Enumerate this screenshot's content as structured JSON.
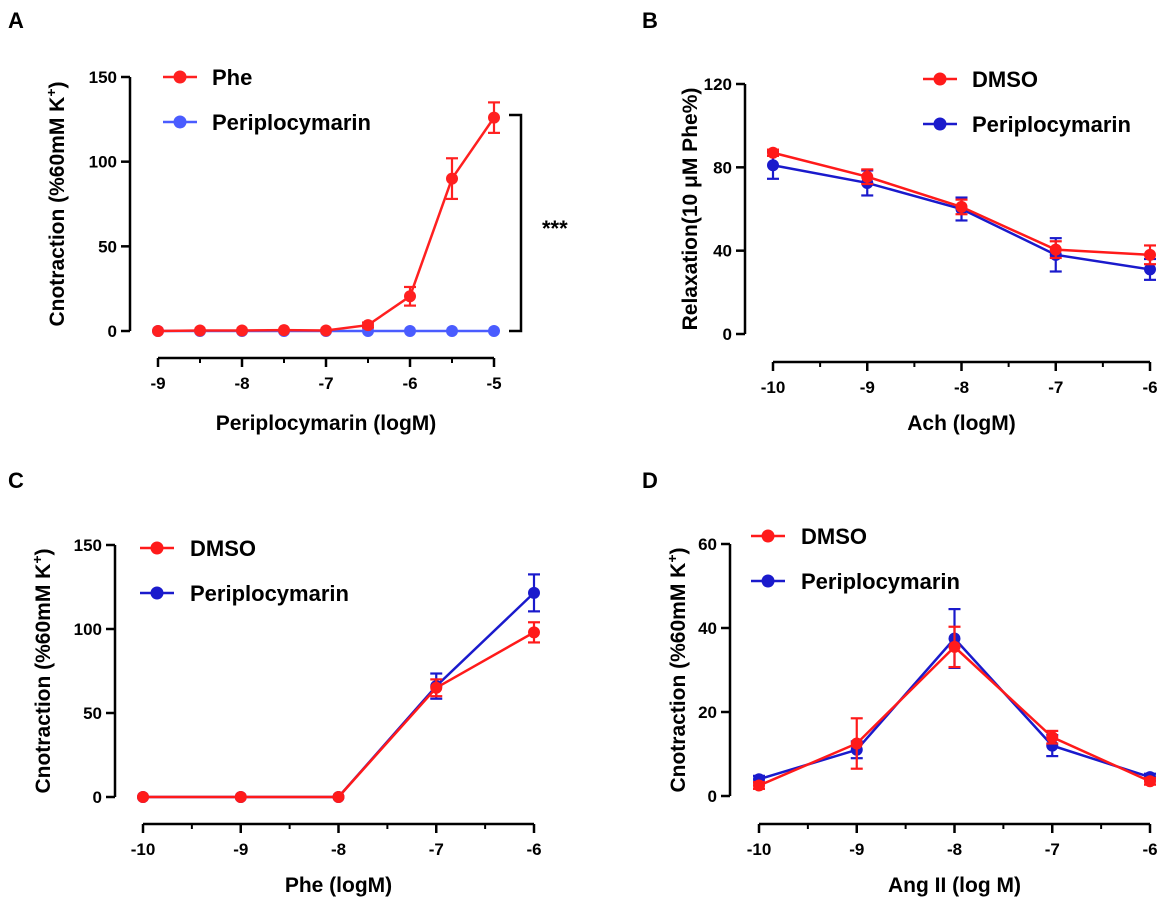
{
  "chart_data": [
    {
      "panel": "A",
      "type": "line",
      "xlabel": "Periplocymarin (logM)",
      "ylabel_main": "Cnotraction (%60mM K",
      "ylabel_sup": "+",
      "ylabel_tail": ")",
      "xlim": [
        -9,
        -5
      ],
      "ylim": [
        0,
        150
      ],
      "xticks": [
        "-9",
        "-8",
        "-7",
        "-6",
        "-5"
      ],
      "yticks": [
        "0",
        "50",
        "100",
        "150"
      ],
      "annotation": "***",
      "series": [
        {
          "name": "Phe",
          "color": "#ff2020",
          "x": [
            -9,
            -8.5,
            -8,
            -7.5,
            -7,
            -6.5,
            -6,
            -5.5,
            -5
          ],
          "y": [
            0,
            0.3,
            0.3,
            0.5,
            0.3,
            3.5,
            20.5,
            90,
            126
          ],
          "err": [
            0,
            0,
            0,
            0,
            0,
            1.5,
            5.5,
            12,
            9
          ]
        },
        {
          "name": "Periplocymarin",
          "color": "#4a5cff",
          "x": [
            -9,
            -8.5,
            -8,
            -7.5,
            -7,
            -6.5,
            -6,
            -5.5,
            -5
          ],
          "y": [
            0,
            0,
            0,
            0,
            0,
            0,
            0,
            0,
            0
          ],
          "err": [
            0,
            0,
            0,
            0,
            0,
            0,
            0,
            0,
            0
          ]
        }
      ]
    },
    {
      "panel": "B",
      "type": "line",
      "xlabel": "Ach (logM)",
      "ylabel_main": "Relaxation(10 μM Phe%)",
      "ylabel_sup": "",
      "ylabel_tail": "",
      "xlim": [
        -10,
        -6
      ],
      "ylim": [
        0,
        120
      ],
      "xticks": [
        "-10",
        "-9",
        "-8",
        "-7",
        "-6"
      ],
      "yticks": [
        "0",
        "40",
        "80",
        "120"
      ],
      "series": [
        {
          "name": "DMSO",
          "color": "#ff1a1a",
          "x": [
            -10,
            -9,
            -8,
            -7,
            -6
          ],
          "y": [
            87,
            75.5,
            61,
            40.5,
            38
          ],
          "err": [
            1.5,
            3.5,
            3.5,
            4,
            4.5
          ]
        },
        {
          "name": "Periplocymarin",
          "color": "#1a1acc",
          "x": [
            -10,
            -9,
            -8,
            -7,
            -6
          ],
          "y": [
            81,
            72.5,
            60,
            38,
            31
          ],
          "err": [
            6.5,
            6,
            5.5,
            8,
            5
          ]
        }
      ]
    },
    {
      "panel": "C",
      "type": "line",
      "xlabel": "Phe (logM)",
      "ylabel_main": "Cnotraction (%60mM K",
      "ylabel_sup": "+",
      "ylabel_tail": ")",
      "xlim": [
        -10,
        -6
      ],
      "ylim": [
        0,
        150
      ],
      "xticks": [
        "-10",
        "-9",
        "-8",
        "-7",
        "-6"
      ],
      "yticks": [
        "0",
        "50",
        "100",
        "150"
      ],
      "series": [
        {
          "name": "DMSO",
          "color": "#ff1a1a",
          "x": [
            -10,
            -9,
            -8,
            -7,
            -6
          ],
          "y": [
            0,
            0,
            0,
            65,
            98
          ],
          "err": [
            0,
            0,
            0,
            5,
            6
          ]
        },
        {
          "name": "Periplocymarin",
          "color": "#1a1acc",
          "x": [
            -10,
            -9,
            -8,
            -7,
            -6
          ],
          "y": [
            0,
            0,
            0,
            66,
            121.5
          ],
          "err": [
            0,
            0,
            0,
            7.5,
            11
          ]
        }
      ]
    },
    {
      "panel": "D",
      "type": "line",
      "xlabel": "Ang II (log M)",
      "ylabel_main": "Cnotraction (%60mM K",
      "ylabel_sup": "+",
      "ylabel_tail": ")",
      "xlim": [
        -10,
        -6
      ],
      "ylim": [
        0,
        60
      ],
      "xticks": [
        "-10",
        "-9",
        "-8",
        "-7",
        "-6"
      ],
      "yticks": [
        "0",
        "20",
        "40",
        "60"
      ],
      "series": [
        {
          "name": "DMSO",
          "color": "#ff1a1a",
          "x": [
            -10,
            -9,
            -8,
            -7,
            -6
          ],
          "y": [
            2.5,
            12.5,
            35.5,
            14,
            3.5
          ],
          "err": [
            0.8,
            6,
            4.8,
            1.5,
            0.8
          ]
        },
        {
          "name": "Periplocymarin",
          "color": "#1a1acc",
          "x": [
            -10,
            -9,
            -8,
            -7,
            -6
          ],
          "y": [
            4,
            11,
            37.5,
            12,
            4.5
          ],
          "err": [
            0.8,
            2,
            7,
            2.5,
            0.8
          ]
        }
      ]
    }
  ]
}
